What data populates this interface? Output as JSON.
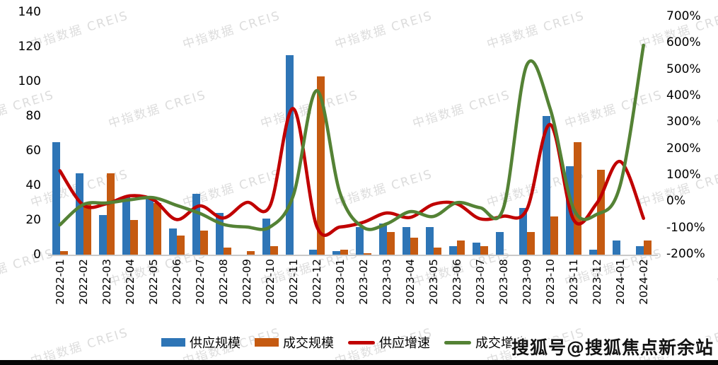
{
  "watermark": {
    "text": "中指数据 CREIS"
  },
  "sohu_watermark": "搜狐号@搜狐焦点新余站",
  "legend": [
    "供应规模",
    "成交规模",
    "供应增速",
    "成交增速"
  ],
  "colors": {
    "supply_bar": "#2E75B6",
    "transaction_bar": "#C55A11",
    "supply_line": "#C00000",
    "transaction_line": "#548235",
    "axis_line": "#C9C9C9"
  },
  "chart_data": {
    "type": "bar+line combo",
    "categories": [
      "2022-01",
      "2022-02",
      "2022-03",
      "2022-04",
      "2022-05",
      "2022-06",
      "2022-07",
      "2022-08",
      "2022-09",
      "2022-10",
      "2022-11",
      "2022-12",
      "2023-01",
      "2023-02",
      "2023-03",
      "2023-04",
      "2023-05",
      "2023-06",
      "2023-07",
      "2023-08",
      "2023-09",
      "2023-10",
      "2023-11",
      "2023-12",
      "2024-01",
      "2024-02"
    ],
    "series": [
      {
        "name": "供应规模",
        "type": "bar",
        "axis": "left",
        "color": "#2E75B6",
        "values": [
          65,
          47,
          23,
          33,
          33,
          15,
          35,
          24,
          0,
          21,
          115,
          3,
          2,
          16,
          18,
          16,
          16,
          5,
          7,
          13,
          27,
          80,
          51,
          3,
          8,
          5
        ]
      },
      {
        "name": "成交规模",
        "type": "bar",
        "axis": "left",
        "color": "#C55A11",
        "values": [
          2,
          29,
          47,
          20,
          30,
          11,
          14,
          4,
          2,
          5,
          0,
          103,
          3,
          1,
          13,
          10,
          4,
          8,
          5,
          0,
          13,
          22,
          65,
          49,
          0,
          8
        ]
      },
      {
        "name": "供应增速",
        "type": "line",
        "axis": "right",
        "unit": "%",
        "color": "#C00000",
        "values": [
          115,
          -15,
          -10,
          20,
          5,
          -70,
          -18,
          -64,
          -5,
          -18,
          350,
          -95,
          -98,
          -80,
          -45,
          -62,
          -12,
          -10,
          -67,
          -57,
          -32,
          290,
          -70,
          -8,
          150,
          -65
        ]
      },
      {
        "name": "成交增速",
        "type": "line",
        "axis": "right",
        "unit": "%",
        "color": "#548235",
        "values": [
          -90,
          -13,
          -7,
          5,
          13,
          -16,
          -47,
          -88,
          -98,
          -98,
          22,
          418,
          30,
          -100,
          -86,
          -40,
          -58,
          -6,
          -25,
          -26,
          515,
          350,
          -28,
          -50,
          60,
          590
        ]
      }
    ],
    "left_axis": {
      "min": 0,
      "max": 140,
      "step": 20,
      "ticks": [
        "140",
        "120",
        "100",
        "80",
        "60",
        "40",
        "20",
        "0"
      ]
    },
    "right_axis": {
      "min": -200,
      "max": 700,
      "step": 100,
      "ticks": [
        "700%",
        "600%",
        "500%",
        "400%",
        "300%",
        "200%",
        "100%",
        "0%",
        "-100%",
        "-200%"
      ]
    },
    "grid": false,
    "legend_position": "bottom",
    "title": ""
  }
}
